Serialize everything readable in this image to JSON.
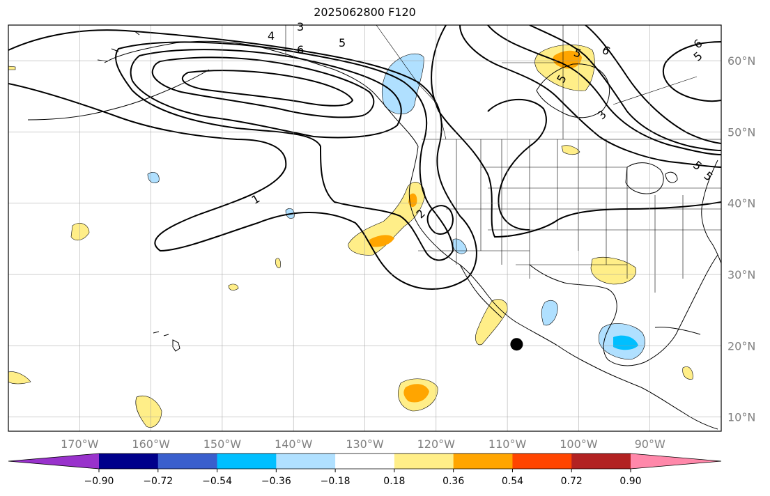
{
  "title": "2025062800 F120",
  "map": {
    "projection": "PlateCarree",
    "lon_range": [
      -180,
      -80
    ],
    "lat_range": [
      8,
      65
    ],
    "gridlines": true,
    "lon_ticks": [
      -170,
      -160,
      -150,
      -140,
      -130,
      -120,
      -110,
      -100,
      -90
    ],
    "lon_tick_labels": [
      "170°W",
      "160°W",
      "150°W",
      "140°W",
      "130°W",
      "120°W",
      "110°W",
      "100°W",
      "90°W"
    ],
    "lat_ticks": [
      60,
      50,
      40,
      30,
      20,
      10
    ],
    "lat_tick_labels": [
      "60°N",
      "50°N",
      "40°N",
      "30°N",
      "20°N",
      "10°N"
    ],
    "marker": {
      "lon": -108.7,
      "lat": 20.2,
      "color": "#000000",
      "icon": "storm-center-dot"
    }
  },
  "contours": {
    "color": "#000000",
    "labels": [
      "1",
      "2",
      "3",
      "4",
      "5",
      "5",
      "5",
      "6",
      "6",
      "6",
      "5",
      "5",
      "3",
      "5"
    ]
  },
  "colorbar": {
    "orientation": "horizontal",
    "extend": "both",
    "tick_values": [
      -0.9,
      -0.72,
      -0.54,
      -0.36,
      -0.18,
      0.18,
      0.36,
      0.54,
      0.72,
      0.9
    ],
    "tick_labels": [
      "−0.90",
      "−0.72",
      "−0.54",
      "−0.36",
      "−0.18",
      "0.18",
      "0.36",
      "0.54",
      "0.72",
      "0.90"
    ],
    "colors": [
      "#9932cc",
      "#00008b",
      "#3a5fcd",
      "#00bfff",
      "#b0e0ff",
      "#ffffff",
      "#ffee88",
      "#ffa500",
      "#ff4500",
      "#b22222",
      "#ff88aa"
    ]
  }
}
